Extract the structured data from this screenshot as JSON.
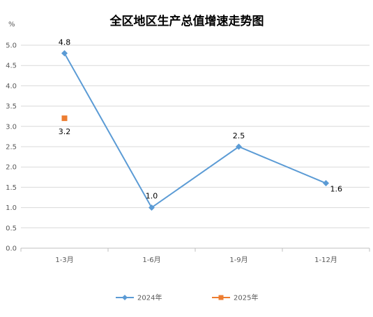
{
  "chart_data": {
    "type": "line",
    "title": "全区地区生产总值增速走势图",
    "unit": "%",
    "categories": [
      "1-3月",
      "1-6月",
      "1-9月",
      "1-12月"
    ],
    "ylim": [
      0,
      5.0
    ],
    "yticks": [
      "0.0",
      "0.5",
      "1.0",
      "1.5",
      "2.0",
      "2.5",
      "3.0",
      "3.5",
      "4.0",
      "4.5",
      "5.0"
    ],
    "grid": true,
    "legend_position": "bottom",
    "series": [
      {
        "name": "2024年",
        "values": [
          4.8,
          1.0,
          2.5,
          1.6
        ],
        "labels": [
          "4.8",
          "1.0",
          "2.5",
          "1.6"
        ],
        "color": "#5b9bd5",
        "marker": "diamond"
      },
      {
        "name": "2025年",
        "values": [
          3.2,
          null,
          null,
          null
        ],
        "labels": [
          "3.2",
          "",
          "",
          ""
        ],
        "color": "#ed7d31",
        "marker": "square"
      }
    ]
  }
}
